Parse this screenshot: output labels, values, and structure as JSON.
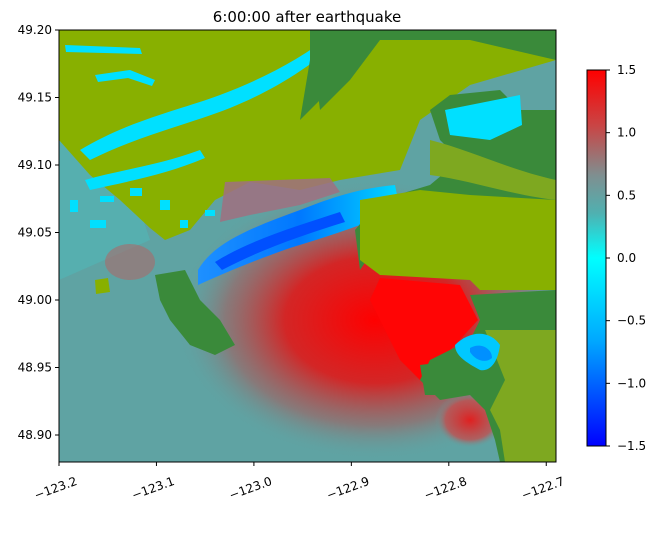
{
  "chart_data": {
    "type": "heatmap",
    "title": "6:00:00 after earthquake",
    "xlabel": "",
    "ylabel": "",
    "xlim": [
      -123.2,
      -122.69
    ],
    "ylim": [
      48.88,
      49.2
    ],
    "x_ticks": [
      -123.2,
      -123.1,
      -123.0,
      -122.9,
      -122.8,
      -122.7
    ],
    "x_tick_labels": [
      "−123.2",
      "−123.1",
      "−123.0",
      "−122.9",
      "−122.8",
      "−122.7"
    ],
    "y_ticks": [
      48.9,
      48.95,
      49.0,
      49.05,
      49.1,
      49.15,
      49.2
    ],
    "y_tick_labels": [
      "48.90",
      "48.95",
      "49.00",
      "49.05",
      "49.10",
      "49.15",
      "49.20"
    ],
    "colorbar": {
      "range": [
        -1.5,
        1.5
      ],
      "ticks": [
        -1.5,
        -1.0,
        -0.5,
        0.0,
        0.5,
        1.0,
        1.5
      ],
      "tick_labels": [
        "−1.5",
        "−1.0",
        "−0.5",
        "0.0",
        "0.5",
        "1.0",
        "1.5"
      ],
      "colors": [
        "#0000ff",
        "#00c8ff",
        "#00ffff",
        "#50b0b0",
        "#7a8f8f",
        "#c84040",
        "#ff0000"
      ]
    },
    "land_colors": {
      "lowland": "#88b000",
      "upland": "#3a8a3a"
    },
    "water_background": "#5fa3a3",
    "features": [
      {
        "kind": "positive-anomaly",
        "peak": 1.5,
        "center": [
          -122.88,
          49.0
        ]
      },
      {
        "kind": "negative-anomaly",
        "trough": -0.9,
        "center": [
          -122.98,
          49.05
        ]
      },
      {
        "kind": "negative-anomaly",
        "trough": -0.6,
        "center": [
          -122.76,
          48.97
        ]
      },
      {
        "kind": "positive-anomaly",
        "peak": 1.2,
        "center": [
          -122.77,
          48.92
        ]
      }
    ]
  }
}
